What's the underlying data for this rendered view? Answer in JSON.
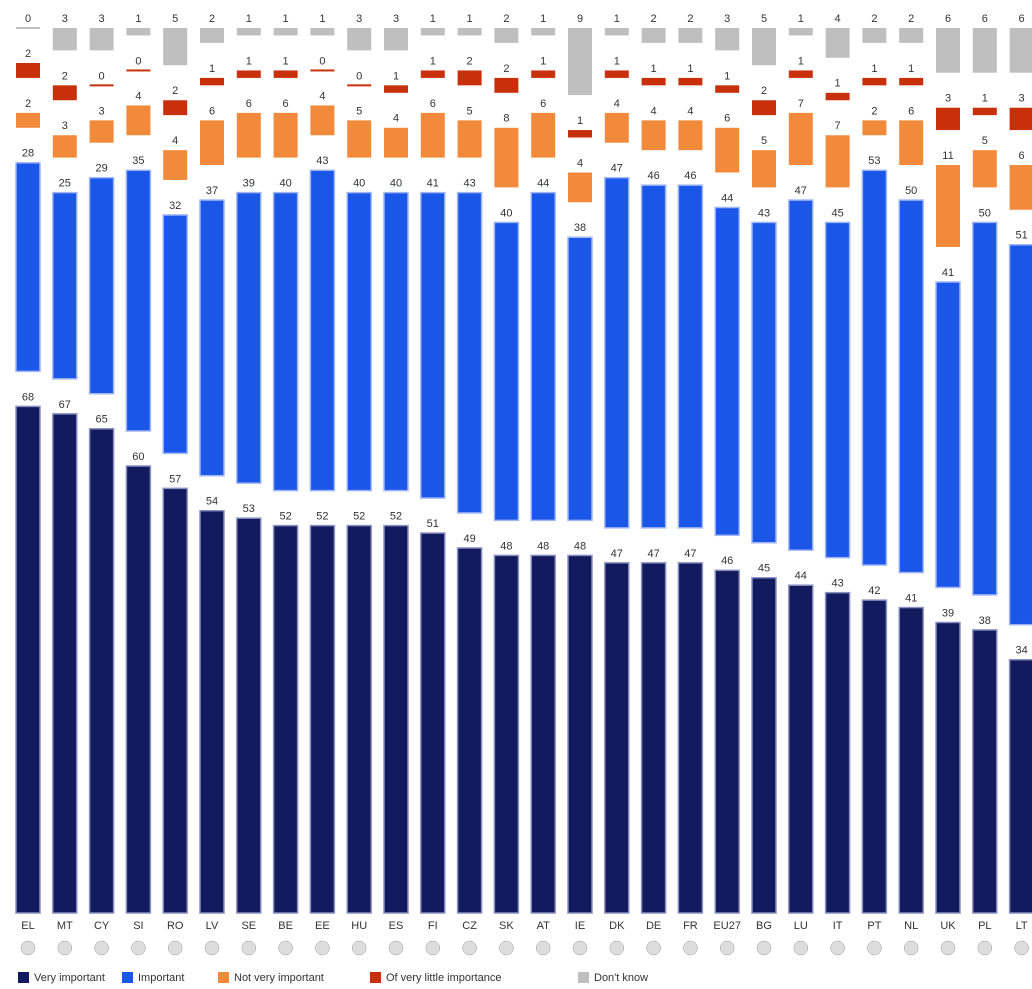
{
  "chart_data": {
    "type": "stacked_bar",
    "categories": [
      "EL",
      "MT",
      "CY",
      "SI",
      "RO",
      "LV",
      "SE",
      "BE",
      "EE",
      "HU",
      "ES",
      "FI",
      "CZ",
      "SK",
      "AT",
      "IE",
      "DK",
      "DE",
      "FR",
      "EU27",
      "BG",
      "LU",
      "IT",
      "PT",
      "NL",
      "UK",
      "PL",
      "LT"
    ],
    "series": [
      {
        "name": "Very important",
        "color": "#141a5e",
        "values": [
          68,
          67,
          65,
          60,
          57,
          54,
          53,
          52,
          52,
          52,
          52,
          51,
          49,
          48,
          48,
          48,
          47,
          47,
          47,
          46,
          45,
          44,
          43,
          42,
          41,
          39,
          38,
          34
        ]
      },
      {
        "name": "Important",
        "color": "#1a56e8",
        "values": [
          28,
          25,
          29,
          35,
          32,
          37,
          39,
          40,
          43,
          40,
          40,
          41,
          43,
          40,
          44,
          38,
          47,
          46,
          46,
          44,
          43,
          47,
          45,
          53,
          50,
          41,
          50,
          51
        ]
      },
      {
        "name": "Not very important",
        "color": "#f28a3c",
        "values": [
          2,
          3,
          3,
          4,
          4,
          6,
          6,
          6,
          4,
          5,
          4,
          6,
          5,
          8,
          6,
          4,
          4,
          4,
          4,
          6,
          5,
          7,
          7,
          2,
          6,
          11,
          5,
          6
        ]
      },
      {
        "name": "Of very little importance",
        "color": "#c8300c",
        "values": [
          2,
          2,
          0,
          0,
          2,
          1,
          1,
          1,
          0,
          0,
          1,
          1,
          2,
          2,
          1,
          1,
          1,
          1,
          1,
          1,
          2,
          1,
          1,
          1,
          1,
          3,
          1,
          3
        ]
      },
      {
        "name": "Don't know",
        "color": "#bfbfbf",
        "values": [
          0,
          3,
          3,
          1,
          5,
          2,
          1,
          1,
          1,
          3,
          3,
          1,
          1,
          2,
          1,
          9,
          1,
          2,
          2,
          3,
          5,
          1,
          4,
          2,
          2,
          6,
          6,
          6
        ]
      }
    ]
  }
}
